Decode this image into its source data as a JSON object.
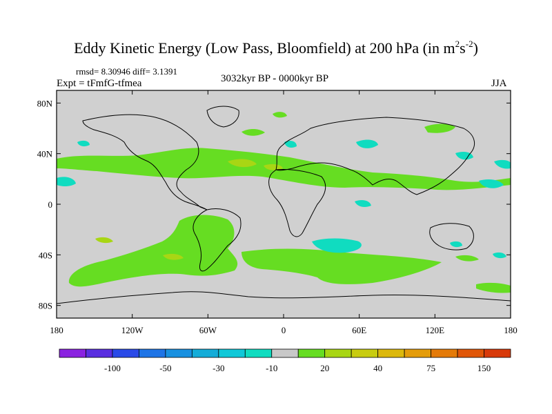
{
  "header": {
    "title_main": "Eddy Kinetic Energy (Low Pass, Bloomfield) at 200 hPa (in m",
    "title_sup1": "2",
    "title_mid": "s",
    "title_sup2": "-2",
    "title_end": ")",
    "stats": "rmsd= 8.30946 diff= 3.1391",
    "expt": "Expt = tFmfG-tfmea",
    "period": "3032kyr BP - 0000kyr BP",
    "season": "JJA"
  },
  "map": {
    "background_color": "#d0d0d0",
    "y_ticks": [
      "80N",
      "40N",
      "0",
      "40S",
      "80S"
    ],
    "x_ticks": [
      "180",
      "120W",
      "60W",
      "0",
      "60E",
      "120E",
      "180"
    ]
  },
  "colorbar": {
    "colors": [
      "#8a22e0",
      "#5a2ee0",
      "#2a4ae8",
      "#1e74e6",
      "#1890e0",
      "#14acd8",
      "#10c8d8",
      "#10dcc0",
      "#c8c8c8",
      "#66dd22",
      "#a8d614",
      "#c8cc10",
      "#dcb80c",
      "#e49c0a",
      "#e47a08",
      "#e05608",
      "#d83a0a"
    ],
    "labels": [
      "-100",
      "-50",
      "-30",
      "-10",
      "20",
      "40",
      "75",
      "150"
    ],
    "label_after_box": [
      2,
      4,
      6,
      8,
      10,
      12,
      14,
      16
    ]
  },
  "regions": {
    "positive_low_color": "#66dd22",
    "positive_mid_color": "#a8d614",
    "negative_low_color": "#10dcc0",
    "negative_mid_color": "#14acd8"
  }
}
